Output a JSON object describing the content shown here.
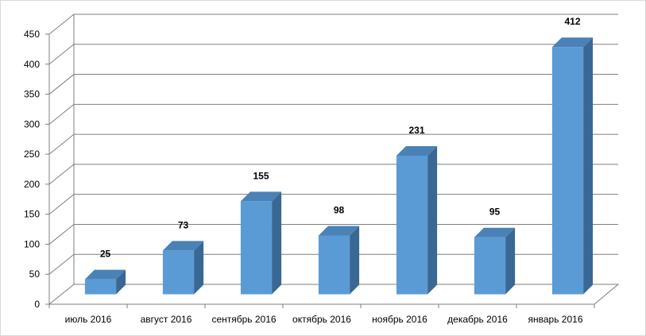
{
  "chart_data": {
    "type": "bar",
    "title": "",
    "xlabel": "",
    "ylabel": "",
    "categories": [
      "июль 2016",
      "август 2016",
      "сентябрь 2016",
      "октябрь 2016",
      "ноябрь 2016",
      "декабрь 2016",
      "январь 2016"
    ],
    "values": [
      25,
      73,
      155,
      98,
      231,
      95,
      412
    ],
    "ylim": [
      0,
      450
    ],
    "yticks": [
      0,
      50,
      100,
      150,
      200,
      250,
      300,
      350,
      400,
      450
    ],
    "data_labels": true,
    "grid": true,
    "legend": "none",
    "colors": {
      "bar_front": "#5b9bd5",
      "bar_top": "#4a82b8",
      "bar_side": "#3a6894",
      "grid": "#7f7f7f",
      "text": "#000000"
    }
  }
}
